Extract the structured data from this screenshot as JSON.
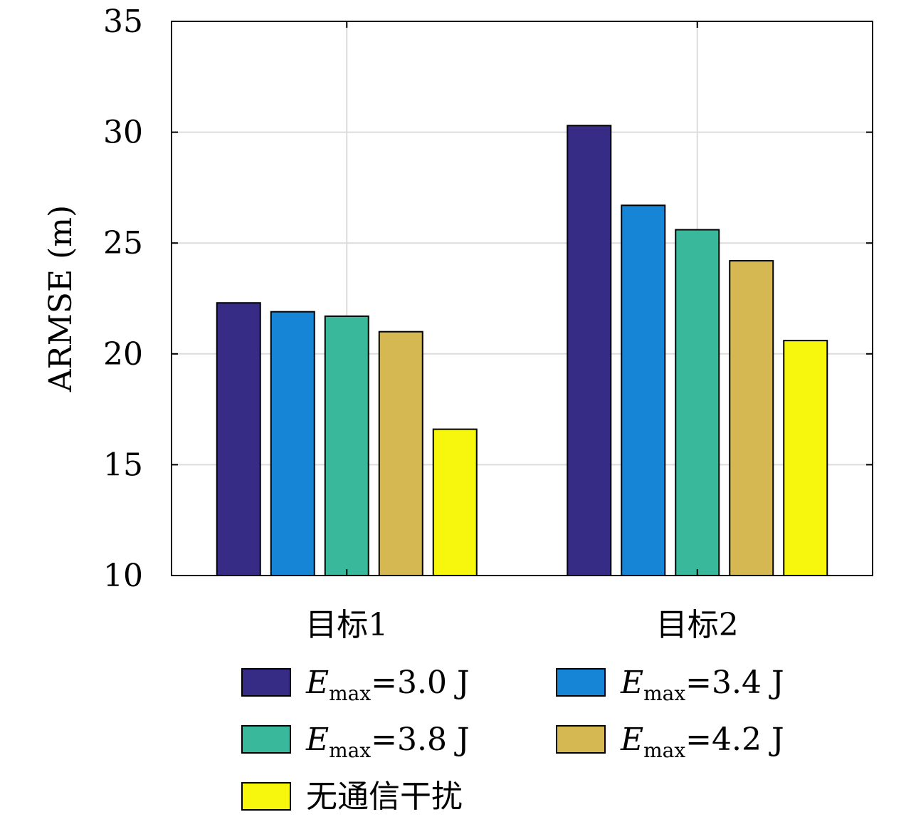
{
  "chart_data": {
    "type": "bar",
    "categories": [
      "目标1",
      "目标2"
    ],
    "series": [
      {
        "name": "E_max=3.0 J",
        "legend": {
          "sym": "E",
          "sub": "max",
          "rest": "=3.0 J"
        },
        "color": "#362b85",
        "values": [
          22.3,
          30.3
        ]
      },
      {
        "name": "E_max=3.4 J",
        "legend": {
          "sym": "E",
          "sub": "max",
          "rest": "=3.4 J"
        },
        "color": "#1785d6",
        "values": [
          21.9,
          26.7
        ]
      },
      {
        "name": "E_max=3.8 J",
        "legend": {
          "sym": "E",
          "sub": "max",
          "rest": "=3.8 J"
        },
        "color": "#39b89b",
        "values": [
          21.7,
          25.6
        ]
      },
      {
        "name": "E_max=4.2 J",
        "legend": {
          "sym": "E",
          "sub": "max",
          "rest": "=4.2 J"
        },
        "color": "#d6b852",
        "values": [
          21.0,
          24.2
        ]
      },
      {
        "name": "无通信干扰",
        "legend": {
          "sym": "",
          "sub": "",
          "rest": "无通信干扰"
        },
        "color": "#f7f70d",
        "values": [
          16.6,
          20.6
        ]
      }
    ],
    "ylabel": "ARMSE (m)",
    "ylim": [
      10,
      35
    ],
    "yticks": [
      10,
      15,
      20,
      25,
      30,
      35
    ],
    "grid": true,
    "legend_position": "bottom"
  }
}
